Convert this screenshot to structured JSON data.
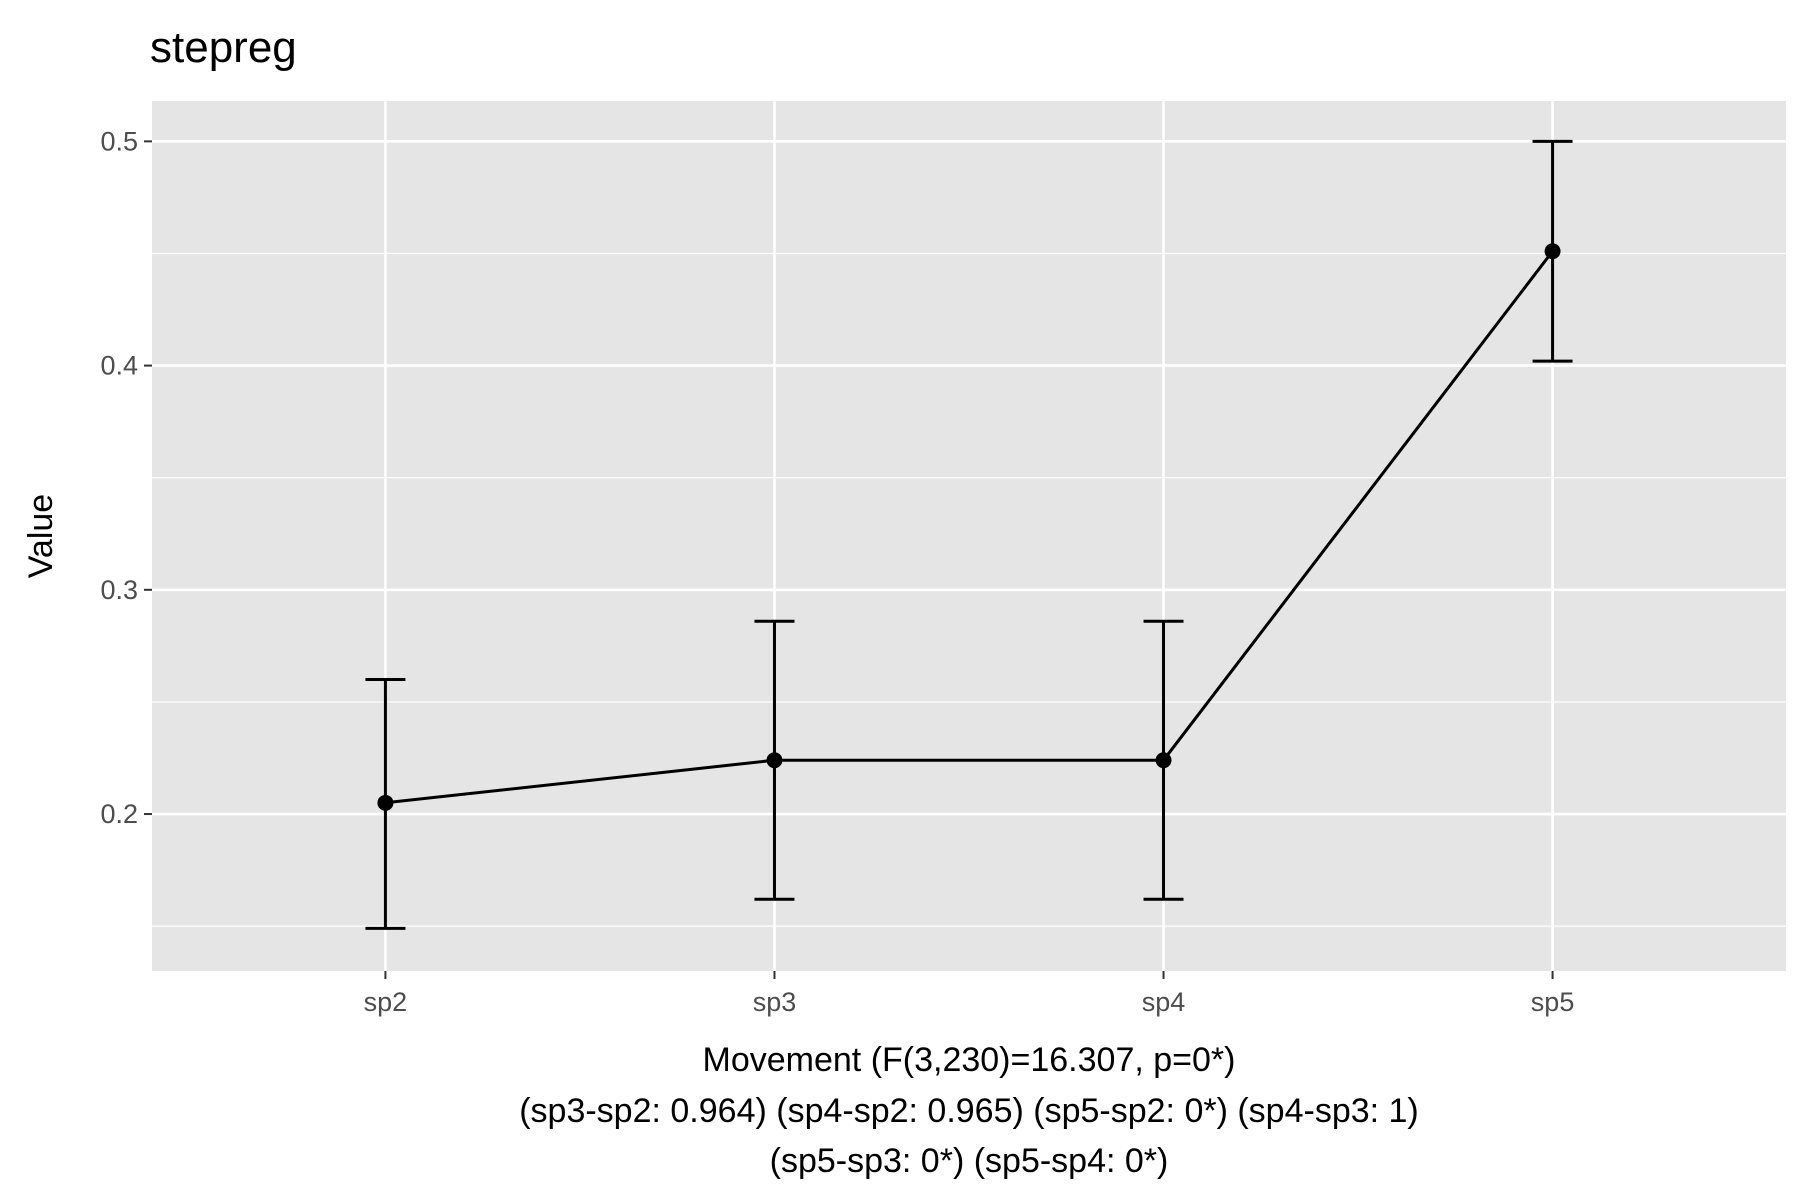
{
  "chart_data": {
    "type": "line",
    "title": "stepreg",
    "xlabel": [
      "Movement (F(3,230)=16.307, p=0*)",
      "(sp3-sp2: 0.964) (sp4-sp2: 0.965) (sp5-sp2: 0*) (sp4-sp3: 1)",
      "(sp5-sp3: 0*) (sp5-sp4: 0*)"
    ],
    "ylabel": "Value",
    "categories": [
      "sp2",
      "sp3",
      "sp4",
      "sp5"
    ],
    "series": [
      {
        "values": [
          0.205,
          0.224,
          0.224,
          0.451
        ],
        "error_low": [
          0.149,
          0.162,
          0.162,
          0.402
        ],
        "error_high": [
          0.26,
          0.286,
          0.286,
          0.5
        ]
      }
    ],
    "ylim": [
      0.13,
      0.518
    ],
    "yticks": [
      0.2,
      0.3,
      0.4,
      0.5
    ],
    "ytick_labels": [
      "0.2",
      "0.3",
      "0.4",
      "0.5"
    ],
    "grid": true,
    "legend": "none",
    "colors": {
      "panel": "#e5e5e5",
      "grid": "#ffffff",
      "line": "#000000",
      "tick_text": "#4d4d4d"
    }
  }
}
